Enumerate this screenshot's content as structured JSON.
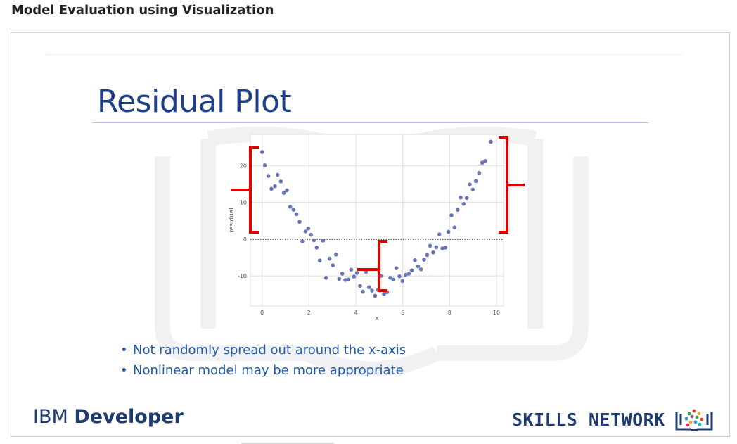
{
  "page": {
    "heading": "Model Evaluation using Visualization"
  },
  "slide": {
    "title": "Residual Plot",
    "bullets": [
      "Not randomly spread out around the x-axis",
      "Nonlinear model may be more appropriate"
    ],
    "bullet_glyph": "•",
    "footer": {
      "ibm_light": "IBM ",
      "ibm_bold": "Developer",
      "skills_text": "SKILLS NETWORK",
      "skills_icon": "book-tree-icon"
    }
  },
  "chart_data": {
    "type": "scatter",
    "xlabel": "x",
    "ylabel": "residual",
    "xlim": [
      -0.5,
      10.3
    ],
    "ylim": [
      -18.2,
      28.5
    ],
    "x_ticks": [
      "0",
      "2",
      "4",
      "6",
      "8",
      "10"
    ],
    "y_ticks": [
      "20",
      "10",
      "0",
      "-10"
    ],
    "grid": true,
    "reference_line": {
      "y": 0,
      "style": "dotted"
    },
    "point_color": "#6674b8",
    "bracket_color": "#e00000",
    "points": [
      [
        0.0,
        23.7
      ],
      [
        0.12,
        20.1
      ],
      [
        0.27,
        17.2
      ],
      [
        0.4,
        13.7
      ],
      [
        0.55,
        14.4
      ],
      [
        0.66,
        17.5
      ],
      [
        0.8,
        15.7
      ],
      [
        0.93,
        12.6
      ],
      [
        1.06,
        13.3
      ],
      [
        1.2,
        8.8
      ],
      [
        1.34,
        8.0
      ],
      [
        1.47,
        6.8
      ],
      [
        1.6,
        4.7
      ],
      [
        1.72,
        -0.6
      ],
      [
        1.85,
        2.1
      ],
      [
        1.97,
        2.9
      ],
      [
        2.09,
        1.2
      ],
      [
        2.21,
        -0.3
      ],
      [
        2.33,
        -2.3
      ],
      [
        2.46,
        -5.8
      ],
      [
        2.6,
        -0.4
      ],
      [
        2.73,
        -10.5
      ],
      [
        2.88,
        -5.3
      ],
      [
        3.02,
        -7.1
      ],
      [
        3.15,
        -4.2
      ],
      [
        3.29,
        -10.8
      ],
      [
        3.42,
        -9.4
      ],
      [
        3.55,
        -11.1
      ],
      [
        3.68,
        -11.0
      ],
      [
        3.8,
        -8.3
      ],
      [
        3.92,
        -10.2
      ],
      [
        4.05,
        -9.2
      ],
      [
        4.18,
        -12.7
      ],
      [
        4.3,
        -14.3
      ],
      [
        4.43,
        -8.9
      ],
      [
        4.56,
        -13.1
      ],
      [
        4.69,
        -14.0
      ],
      [
        4.82,
        -15.4
      ],
      [
        4.95,
        -13.8
      ],
      [
        5.07,
        -10.0
      ],
      [
        5.2,
        -14.9
      ],
      [
        5.33,
        -14.4
      ],
      [
        5.47,
        -10.5
      ],
      [
        5.6,
        -11.0
      ],
      [
        5.73,
        -7.9
      ],
      [
        5.86,
        -10.1
      ],
      [
        5.99,
        -11.4
      ],
      [
        6.12,
        -9.7
      ],
      [
        6.26,
        -9.4
      ],
      [
        6.39,
        -8.5
      ],
      [
        6.52,
        -5.7
      ],
      [
        6.65,
        -7.4
      ],
      [
        6.78,
        -8.2
      ],
      [
        6.91,
        -5.6
      ],
      [
        7.04,
        -4.3
      ],
      [
        7.17,
        -1.8
      ],
      [
        7.3,
        -3.6
      ],
      [
        7.43,
        -2.2
      ],
      [
        7.56,
        1.3
      ],
      [
        7.69,
        -2.5
      ],
      [
        7.82,
        -2.3
      ],
      [
        7.95,
        2.0
      ],
      [
        8.08,
        6.5
      ],
      [
        8.21,
        3.2
      ],
      [
        8.34,
        8.0
      ],
      [
        8.47,
        11.3
      ],
      [
        8.6,
        9.6
      ],
      [
        8.73,
        11.2
      ],
      [
        8.86,
        14.9
      ],
      [
        8.99,
        13.5
      ],
      [
        9.12,
        15.8
      ],
      [
        9.26,
        18.0
      ],
      [
        9.39,
        20.8
      ],
      [
        9.52,
        21.3
      ],
      [
        9.76,
        26.5
      ]
    ]
  }
}
